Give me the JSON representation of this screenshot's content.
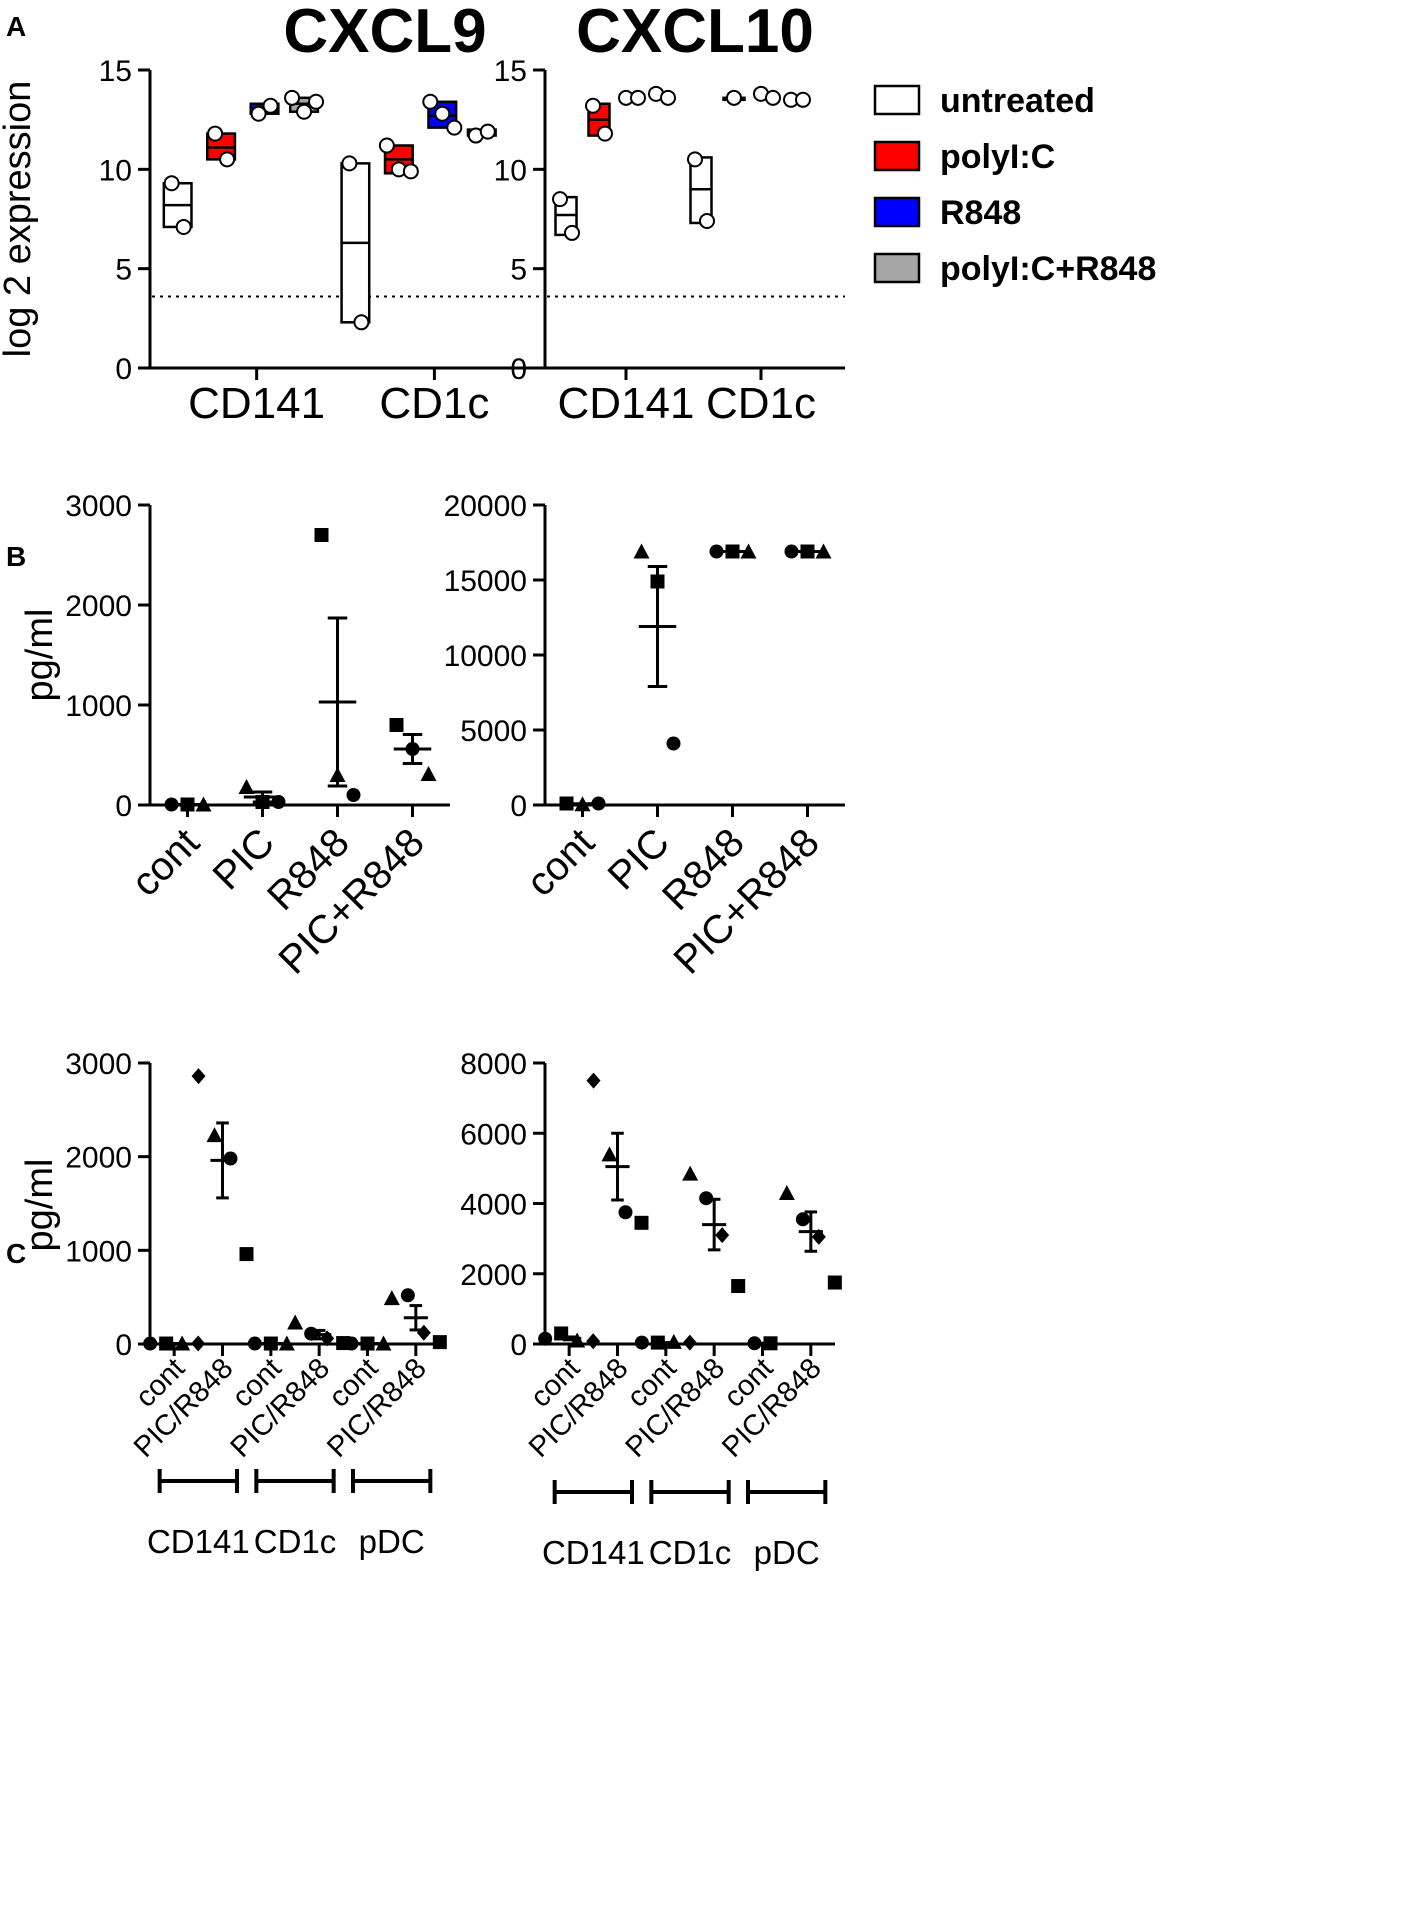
{
  "figure": {
    "panel_labels": [
      "A",
      "B",
      "C"
    ]
  },
  "chart_data": [
    {
      "id": "A1",
      "type": "floating-bar",
      "panel": "A",
      "title": "CXCL9",
      "ylabel": "log 2 expression",
      "ylim": [
        0,
        15
      ],
      "yticks": [
        0,
        5,
        10,
        15
      ],
      "categories": [
        "CD141",
        "CD1c"
      ],
      "threshold": 3.6,
      "series": [
        {
          "name": "untreated",
          "color": "#ffffff",
          "groups": [
            {
              "min": 7.1,
              "max": 9.3,
              "mean": 8.2,
              "points": [
                9.3,
                7.1
              ]
            },
            {
              "min": 2.3,
              "max": 10.3,
              "mean": 6.3,
              "points": [
                10.3,
                2.3
              ]
            }
          ]
        },
        {
          "name": "polyI:C",
          "color": "#ff0000",
          "groups": [
            {
              "min": 10.5,
              "max": 11.8,
              "mean": 11.1,
              "points": [
                11.8,
                10.5
              ]
            },
            {
              "min": 9.8,
              "max": 11.2,
              "mean": 10.5,
              "points": [
                11.2,
                10.0,
                9.9
              ]
            }
          ]
        },
        {
          "name": "R848",
          "color": "#0000ff",
          "groups": [
            {
              "min": 12.8,
              "max": 13.3,
              "mean": 13.0,
              "points": [
                12.8,
                13.2
              ]
            },
            {
              "min": 12.1,
              "max": 13.4,
              "mean": 12.7,
              "points": [
                13.4,
                12.8,
                12.1
              ]
            }
          ]
        },
        {
          "name": "polyI:C+R848",
          "color": "#a6a6a6",
          "groups": [
            {
              "min": 12.9,
              "max": 13.6,
              "mean": 13.3,
              "points": [
                13.6,
                12.9,
                13.4
              ]
            },
            {
              "min": 11.7,
              "max": 12.0,
              "mean": 11.8,
              "points": [
                11.7,
                11.9
              ]
            }
          ]
        }
      ]
    },
    {
      "id": "A2",
      "type": "floating-bar",
      "panel": "A",
      "title": "CXCL10",
      "ylabel": "",
      "ylim": [
        0,
        15
      ],
      "yticks": [
        0,
        5,
        10,
        15
      ],
      "categories": [
        "CD141",
        "CD1c"
      ],
      "threshold": 3.6,
      "series": [
        {
          "name": "untreated",
          "color": "#ffffff",
          "groups": [
            {
              "min": 6.7,
              "max": 8.6,
              "mean": 7.7,
              "points": [
                8.5,
                6.8
              ]
            },
            {
              "min": 7.3,
              "max": 10.6,
              "mean": 9.0,
              "points": [
                10.5,
                7.4
              ]
            }
          ]
        },
        {
          "name": "polyI:C",
          "color": "#ff0000",
          "groups": [
            {
              "min": 11.7,
              "max": 13.3,
              "mean": 12.5,
              "points": [
                13.2,
                11.8
              ]
            },
            {
              "min": 13.5,
              "max": 13.6,
              "mean": 13.55,
              "points": [
                13.6
              ]
            }
          ]
        },
        {
          "name": "R848",
          "color": "#0000ff",
          "groups": [
            {
              "min": 13.5,
              "max": 13.6,
              "mean": 13.55,
              "points": [
                13.6,
                13.6
              ]
            },
            {
              "min": 13.6,
              "max": 13.8,
              "mean": 13.7,
              "points": [
                13.8,
                13.6
              ]
            }
          ]
        },
        {
          "name": "polyI:C+R848",
          "color": "#a6a6a6",
          "groups": [
            {
              "min": 13.6,
              "max": 13.8,
              "mean": 13.7,
              "points": [
                13.8,
                13.6
              ]
            },
            {
              "min": 13.4,
              "max": 13.6,
              "mean": 13.5,
              "points": [
                13.5,
                13.5
              ]
            }
          ]
        }
      ]
    },
    {
      "id": "B1",
      "type": "scatter",
      "panel": "B",
      "ylabel": "pg/ml",
      "ylim": [
        0,
        3000
      ],
      "yticks": [
        0,
        1000,
        2000,
        3000
      ],
      "categories": [
        "cont",
        "PIC",
        "R848",
        "PIC+R848"
      ],
      "groups": [
        {
          "points": [
            {
              "v": 5,
              "m": "circle"
            },
            {
              "v": 5,
              "m": "square"
            },
            {
              "v": 5,
              "m": "triangle"
            }
          ],
          "mean": 5,
          "sem": 0
        },
        {
          "points": [
            {
              "v": 180,
              "m": "triangle"
            },
            {
              "v": 30,
              "m": "square"
            },
            {
              "v": 30,
              "m": "circle"
            }
          ],
          "mean": 80,
          "sem": 50
        },
        {
          "points": [
            {
              "v": 2700,
              "m": "square"
            },
            {
              "v": 300,
              "m": "triangle"
            },
            {
              "v": 100,
              "m": "circle"
            }
          ],
          "mean": 1030,
          "sem": 840
        },
        {
          "points": [
            {
              "v": 800,
              "m": "square"
            },
            {
              "v": 560,
              "m": "circle"
            },
            {
              "v": 310,
              "m": "triangle"
            }
          ],
          "mean": 560,
          "sem": 145
        }
      ]
    },
    {
      "id": "B2",
      "type": "scatter",
      "panel": "B",
      "ylabel": "",
      "ylim": [
        0,
        20000
      ],
      "yticks": [
        0,
        5000,
        10000,
        15000,
        20000
      ],
      "categories": [
        "cont",
        "PIC",
        "R848",
        "PIC+R848"
      ],
      "groups": [
        {
          "points": [
            {
              "v": 100,
              "m": "square"
            },
            {
              "v": 50,
              "m": "triangle"
            },
            {
              "v": 100,
              "m": "circle"
            }
          ],
          "mean": 80,
          "sem": 0
        },
        {
          "points": [
            {
              "v": 16900,
              "m": "triangle"
            },
            {
              "v": 14900,
              "m": "square"
            },
            {
              "v": 4100,
              "m": "circle"
            }
          ],
          "mean": 11900,
          "sem": 4000
        },
        {
          "points": [
            {
              "v": 16900,
              "m": "circle"
            },
            {
              "v": 16900,
              "m": "square"
            },
            {
              "v": 16900,
              "m": "triangle"
            }
          ],
          "mean": 16900,
          "sem": 0
        },
        {
          "points": [
            {
              "v": 16900,
              "m": "circle"
            },
            {
              "v": 16900,
              "m": "square"
            },
            {
              "v": 16900,
              "m": "triangle"
            }
          ],
          "mean": 16900,
          "sem": 0
        }
      ]
    },
    {
      "id": "C1",
      "type": "scatter",
      "panel": "C",
      "ylabel": "pg/ml",
      "ylim": [
        0,
        3000
      ],
      "yticks": [
        0,
        1000,
        2000,
        3000
      ],
      "categories": [
        "cont",
        "PIC/R848",
        "cont",
        "PIC/R848",
        "cont",
        "PIC/R848"
      ],
      "cell_groups": [
        "CD141",
        "CD1c",
        "pDC"
      ],
      "groups": [
        {
          "points": [
            {
              "v": 5,
              "m": "circle"
            },
            {
              "v": 5,
              "m": "square"
            },
            {
              "v": 5,
              "m": "triangle"
            },
            {
              "v": 5,
              "m": "diamond"
            }
          ],
          "mean": 5,
          "sem": 0
        },
        {
          "points": [
            {
              "v": 2860,
              "m": "diamond"
            },
            {
              "v": 2230,
              "m": "triangle"
            },
            {
              "v": 1980,
              "m": "circle"
            },
            {
              "v": 960,
              "m": "square"
            }
          ],
          "mean": 1960,
          "sem": 400
        },
        {
          "points": [
            {
              "v": 5,
              "m": "circle"
            },
            {
              "v": 5,
              "m": "square"
            },
            {
              "v": 5,
              "m": "triangle"
            }
          ],
          "mean": 5,
          "sem": 0
        },
        {
          "points": [
            {
              "v": 230,
              "m": "triangle"
            },
            {
              "v": 110,
              "m": "circle"
            },
            {
              "v": 60,
              "m": "diamond"
            },
            {
              "v": 10,
              "m": "square"
            }
          ],
          "mean": 100,
          "sem": 45
        },
        {
          "points": [
            {
              "v": 5,
              "m": "circle"
            },
            {
              "v": 5,
              "m": "square"
            },
            {
              "v": 5,
              "m": "triangle"
            }
          ],
          "mean": 5,
          "sem": 0
        },
        {
          "points": [
            {
              "v": 490,
              "m": "triangle"
            },
            {
              "v": 520,
              "m": "circle"
            },
            {
              "v": 120,
              "m": "diamond"
            },
            {
              "v": 20,
              "m": "square"
            }
          ],
          "mean": 280,
          "sem": 130
        }
      ]
    },
    {
      "id": "C2",
      "type": "scatter",
      "panel": "C",
      "ylabel": "",
      "ylim": [
        0,
        8000
      ],
      "yticks": [
        0,
        2000,
        4000,
        6000,
        8000
      ],
      "categories": [
        "cont",
        "PIC/R848",
        "cont",
        "PIC/R848",
        "cont",
        "PIC/R848"
      ],
      "cell_groups": [
        "CD141",
        "CD1c",
        "pDC"
      ],
      "groups": [
        {
          "points": [
            {
              "v": 150,
              "m": "circle"
            },
            {
              "v": 300,
              "m": "square"
            },
            {
              "v": 100,
              "m": "triangle"
            },
            {
              "v": 80,
              "m": "diamond"
            }
          ],
          "mean": 160,
          "sem": 40
        },
        {
          "points": [
            {
              "v": 7500,
              "m": "diamond"
            },
            {
              "v": 5400,
              "m": "triangle"
            },
            {
              "v": 3750,
              "m": "circle"
            },
            {
              "v": 3450,
              "m": "square"
            }
          ],
          "mean": 5050,
          "sem": 950
        },
        {
          "points": [
            {
              "v": 40,
              "m": "circle"
            },
            {
              "v": 40,
              "m": "square"
            },
            {
              "v": 60,
              "m": "triangle"
            },
            {
              "v": 40,
              "m": "diamond"
            }
          ],
          "mean": 40,
          "sem": 0
        },
        {
          "points": [
            {
              "v": 4850,
              "m": "triangle"
            },
            {
              "v": 4150,
              "m": "circle"
            },
            {
              "v": 3100,
              "m": "diamond"
            },
            {
              "v": 1650,
              "m": "square"
            }
          ],
          "mean": 3400,
          "sem": 720
        },
        {
          "points": [
            {
              "v": 20,
              "m": "circle"
            },
            {
              "v": 20,
              "m": "square"
            }
          ],
          "mean": 20,
          "sem": 0
        },
        {
          "points": [
            {
              "v": 4300,
              "m": "triangle"
            },
            {
              "v": 3550,
              "m": "circle"
            },
            {
              "v": 3050,
              "m": "diamond"
            },
            {
              "v": 1750,
              "m": "square"
            }
          ],
          "mean": 3200,
          "sem": 560
        }
      ]
    }
  ],
  "legend": {
    "items": [
      {
        "label": "untreated",
        "color": "#ffffff"
      },
      {
        "label": "polyI:C",
        "color": "#ff0000"
      },
      {
        "label": "R848",
        "color": "#0000ff"
      },
      {
        "label": "polyI:C+R848",
        "color": "#a6a6a6"
      }
    ]
  }
}
